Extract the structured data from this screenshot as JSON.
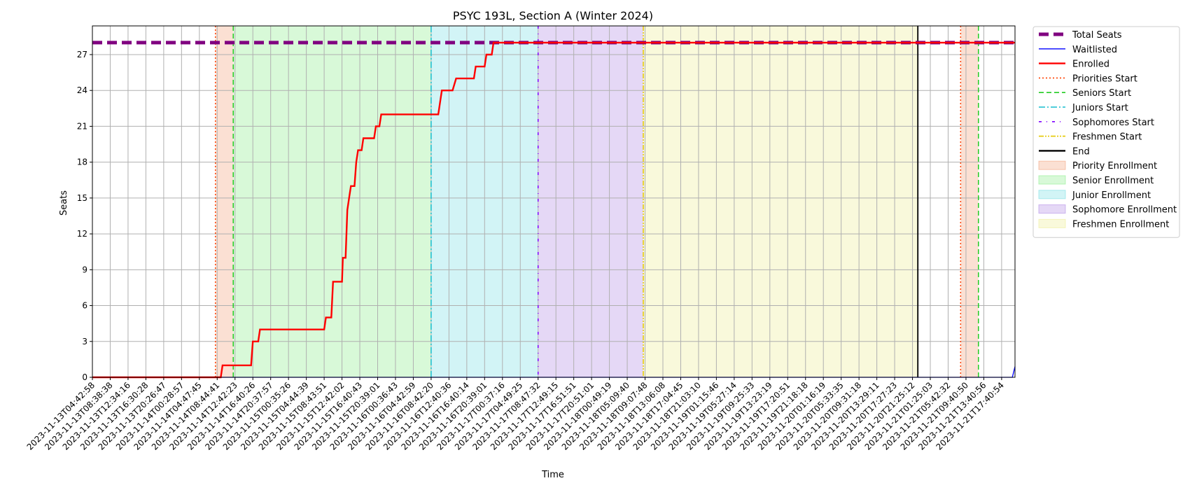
{
  "chart_data": {
    "type": "line",
    "title": "PSYC 193L, Section A (Winter 2024)",
    "xlabel": "Time",
    "ylabel": "Seats",
    "ylim": [
      0,
      29.4
    ],
    "yticks": [
      0,
      3,
      6,
      9,
      12,
      15,
      18,
      21,
      24,
      27
    ],
    "grid": true,
    "legend_position": "outside-right",
    "x_ticks": [
      "2023-11-13T04:42:58",
      "2023-11-13T08:38:38",
      "2023-11-13T12:34:16",
      "2023-11-13T16:30:28",
      "2023-11-13T20:26:47",
      "2023-11-14T00:28:57",
      "2023-11-14T04:47:45",
      "2023-11-14T08:44:41",
      "2023-11-14T12:42:23",
      "2023-11-14T16:40:26",
      "2023-11-14T20:37:57",
      "2023-11-15T00:35:26",
      "2023-11-15T04:44:39",
      "2023-11-15T08:43:51",
      "2023-11-15T12:42:02",
      "2023-11-15T16:40:43",
      "2023-11-15T20:39:01",
      "2023-11-16T00:36:43",
      "2023-11-16T04:42:59",
      "2023-11-16T08:42:20",
      "2023-11-16T12:40:36",
      "2023-11-16T16:40:14",
      "2023-11-16T20:39:01",
      "2023-11-17T00:37:16",
      "2023-11-17T04:49:25",
      "2023-11-17T08:47:32",
      "2023-11-17T12:49:15",
      "2023-11-17T16:51:51",
      "2023-11-17T20:51:01",
      "2023-11-18T00:49:19",
      "2023-11-18T05:09:40",
      "2023-11-18T09:07:48",
      "2023-11-18T13:06:08",
      "2023-11-18T17:04:45",
      "2023-11-18T21:03:10",
      "2023-11-19T01:15:46",
      "2023-11-19T05:27:14",
      "2023-11-19T09:25:33",
      "2023-11-19T13:23:19",
      "2023-11-19T17:20:51",
      "2023-11-19T21:18:18",
      "2023-11-20T01:16:19",
      "2023-11-20T05:33:35",
      "2023-11-20T09:31:18",
      "2023-11-20T13:29:11",
      "2023-11-20T17:27:23",
      "2023-11-20T21:25:12",
      "2023-11-21T01:25:03",
      "2023-11-21T05:42:32",
      "2023-11-21T09:40:50",
      "2023-11-21T13:40:56",
      "2023-11-21T17:40:54"
    ],
    "x_range": [
      0,
      51.75
    ],
    "series": [
      {
        "name": "Total Seats",
        "color": "#800080",
        "style": "dashed-thick",
        "points": [
          [
            0,
            28
          ],
          [
            51.75,
            28
          ]
        ]
      },
      {
        "name": "Waitlisted",
        "color": "#0000ff",
        "style": "solid-thin",
        "points": [
          [
            0,
            0
          ],
          [
            51.6,
            0
          ],
          [
            51.75,
            0.9
          ]
        ]
      },
      {
        "name": "Enrolled",
        "color": "#ff0000",
        "style": "solid",
        "points": [
          [
            0,
            0
          ],
          [
            7.2,
            0
          ],
          [
            7.3,
            1
          ],
          [
            8.9,
            1
          ],
          [
            9.0,
            3
          ],
          [
            9.3,
            3
          ],
          [
            9.4,
            4
          ],
          [
            13.0,
            4
          ],
          [
            13.1,
            5
          ],
          [
            13.4,
            5
          ],
          [
            13.5,
            8
          ],
          [
            14.0,
            8
          ],
          [
            14.05,
            10
          ],
          [
            14.2,
            10
          ],
          [
            14.3,
            14
          ],
          [
            14.4,
            15
          ],
          [
            14.5,
            16
          ],
          [
            14.7,
            16
          ],
          [
            14.8,
            18
          ],
          [
            14.9,
            19
          ],
          [
            15.1,
            19
          ],
          [
            15.2,
            20
          ],
          [
            15.8,
            20
          ],
          [
            15.9,
            21
          ],
          [
            16.1,
            21
          ],
          [
            16.2,
            22
          ],
          [
            19.4,
            22
          ],
          [
            19.6,
            24
          ],
          [
            20.2,
            24
          ],
          [
            20.4,
            25
          ],
          [
            21.4,
            25
          ],
          [
            21.5,
            26
          ],
          [
            22.0,
            26
          ],
          [
            22.1,
            27
          ],
          [
            22.4,
            27
          ],
          [
            22.5,
            28
          ],
          [
            51.75,
            28
          ]
        ]
      }
    ],
    "vertical_lines": [
      {
        "name": "Priorities Start",
        "x": 6.9,
        "color": "#ff4000",
        "style": "dotted"
      },
      {
        "name": "Seniors Start",
        "x": 7.9,
        "color": "#22cc22",
        "style": "dashed"
      },
      {
        "name": "Juniors Start",
        "x": 19.0,
        "color": "#17becf",
        "style": "dashdot"
      },
      {
        "name": "Sophomores Start",
        "x": 25.0,
        "color": "#7f00ff",
        "style": "loose-dashdot"
      },
      {
        "name": "Freshmen Start",
        "x": 30.9,
        "color": "#e5c800",
        "style": "dashdotdot"
      },
      {
        "name": "End",
        "x": 46.3,
        "color": "#000000",
        "style": "solid"
      },
      {
        "name": "",
        "x": 48.7,
        "color": "#ff4000",
        "style": "dotted"
      },
      {
        "name": "",
        "x": 49.7,
        "color": "#22cc22",
        "style": "dashed"
      }
    ],
    "shaded_regions": [
      {
        "name": "Priority Enrollment",
        "from": 6.9,
        "to": 7.9,
        "color": "#f4a582"
      },
      {
        "name": "Senior Enrollment",
        "from": 7.9,
        "to": 19.0,
        "color": "#90ee90"
      },
      {
        "name": "Junior Enrollment",
        "from": 19.0,
        "to": 25.0,
        "color": "#7fdfe5"
      },
      {
        "name": "Sophomore Enrollment",
        "from": 25.0,
        "to": 30.9,
        "color": "#b48fe6"
      },
      {
        "name": "Freshmen Enrollment",
        "from": 30.9,
        "to": 46.3,
        "color": "#eeee99"
      },
      {
        "name": "",
        "from": 48.7,
        "to": 49.7,
        "color": "#f4a582"
      }
    ],
    "legend": [
      {
        "label": "Total Seats",
        "kind": "line",
        "color": "#800080",
        "style": "dashed-thick"
      },
      {
        "label": "Waitlisted",
        "kind": "line",
        "color": "#0000ff",
        "style": "solid-thin"
      },
      {
        "label": "Enrolled",
        "kind": "line",
        "color": "#ff0000",
        "style": "solid"
      },
      {
        "label": "Priorities Start",
        "kind": "line",
        "color": "#ff4000",
        "style": "dotted"
      },
      {
        "label": "Seniors Start",
        "kind": "line",
        "color": "#22cc22",
        "style": "dashed"
      },
      {
        "label": "Juniors Start",
        "kind": "line",
        "color": "#17becf",
        "style": "dashdot"
      },
      {
        "label": "Sophomores Start",
        "kind": "line",
        "color": "#7f00ff",
        "style": "loose-dashdot"
      },
      {
        "label": "Freshmen Start",
        "kind": "line",
        "color": "#e5c800",
        "style": "dashdotdot"
      },
      {
        "label": "End",
        "kind": "line",
        "color": "#000000",
        "style": "solid"
      },
      {
        "label": "Priority Enrollment",
        "kind": "patch",
        "color": "#f4a582"
      },
      {
        "label": "Senior Enrollment",
        "kind": "patch",
        "color": "#90ee90"
      },
      {
        "label": "Junior Enrollment",
        "kind": "patch",
        "color": "#7fdfe5"
      },
      {
        "label": "Sophomore Enrollment",
        "kind": "patch",
        "color": "#b48fe6"
      },
      {
        "label": "Freshmen Enrollment",
        "kind": "patch",
        "color": "#eeee99"
      }
    ]
  }
}
